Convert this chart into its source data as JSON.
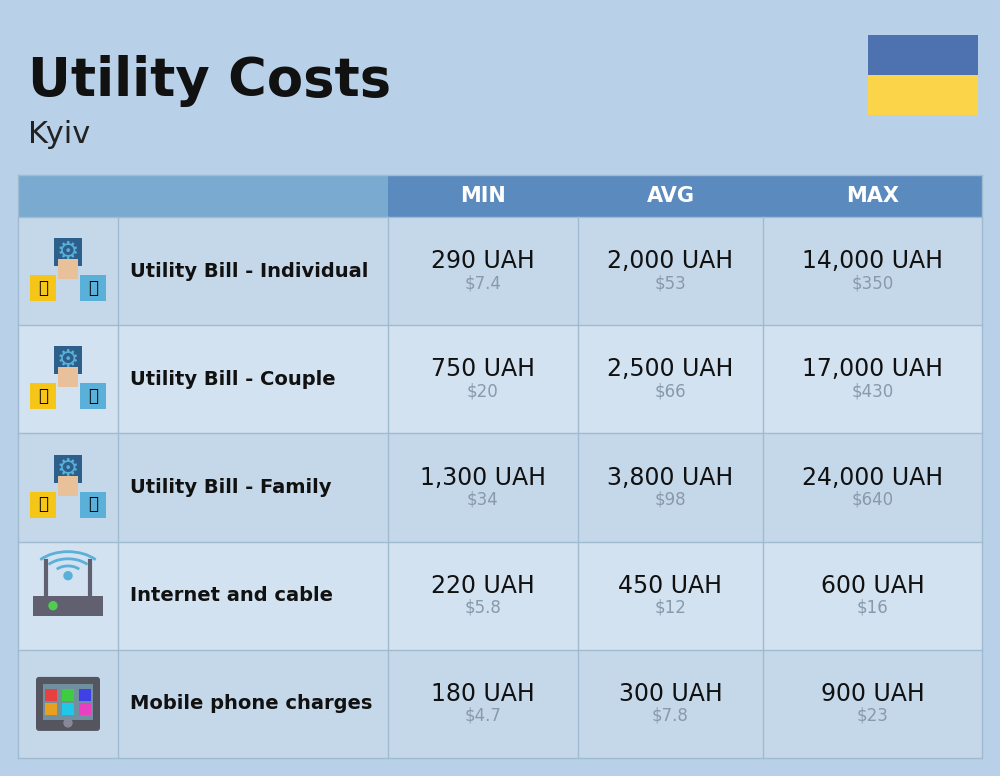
{
  "title": "Utility Costs",
  "subtitle": "Kyiv",
  "background_color": "#b8d0e8",
  "header_bg_color": "#5b8abf",
  "header_icon_bg": "#7aaad0",
  "header_text_color": "#ffffff",
  "row_bg_color_1": "#c5d8ea",
  "row_bg_color_2": "#d2e2f0",
  "col_header_labels": [
    "MIN",
    "AVG",
    "MAX"
  ],
  "rows": [
    {
      "label": "Utility Bill - Individual",
      "min_uah": "290 UAH",
      "min_usd": "$7.4",
      "avg_uah": "2,000 UAH",
      "avg_usd": "$53",
      "max_uah": "14,000 UAH",
      "max_usd": "$350"
    },
    {
      "label": "Utility Bill - Couple",
      "min_uah": "750 UAH",
      "min_usd": "$20",
      "avg_uah": "2,500 UAH",
      "avg_usd": "$66",
      "max_uah": "17,000 UAH",
      "max_usd": "$430"
    },
    {
      "label": "Utility Bill - Family",
      "min_uah": "1,300 UAH",
      "min_usd": "$34",
      "avg_uah": "3,800 UAH",
      "avg_usd": "$98",
      "max_uah": "24,000 UAH",
      "max_usd": "$640"
    },
    {
      "label": "Internet and cable",
      "min_uah": "220 UAH",
      "min_usd": "$5.8",
      "avg_uah": "450 UAH",
      "avg_usd": "$12",
      "max_uah": "600 UAH",
      "max_usd": "$16"
    },
    {
      "label": "Mobile phone charges",
      "min_uah": "180 UAH",
      "min_usd": "$4.7",
      "avg_uah": "300 UAH",
      "avg_usd": "$7.8",
      "max_uah": "900 UAH",
      "max_usd": "$23"
    }
  ],
  "title_fontsize": 38,
  "subtitle_fontsize": 22,
  "header_fontsize": 15,
  "label_fontsize": 14,
  "value_fontsize": 17,
  "usd_fontsize": 12,
  "ukraine_flag_blue": "#4e72b0",
  "ukraine_flag_yellow": "#fbd44a",
  "divider_color": "#a0bbcf",
  "usd_color": "#8899aa",
  "icon_blue_dark": "#2c5f8a",
  "icon_blue_med": "#3a80b0",
  "icon_blue_light": "#5ab0d8",
  "icon_yellow": "#f5c518",
  "icon_orange": "#d47a40",
  "icon_gray": "#808090"
}
